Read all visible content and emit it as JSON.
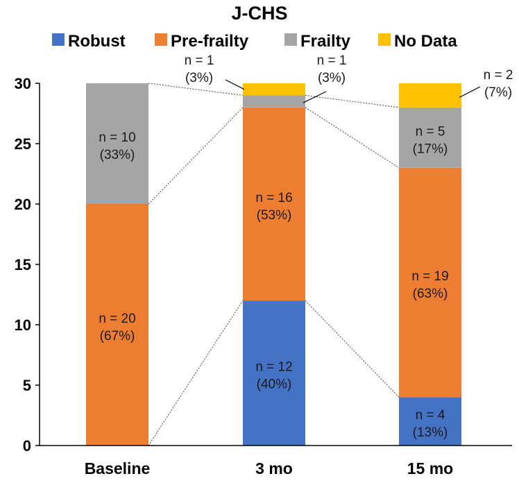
{
  "chart_data": {
    "type": "bar",
    "stacked": true,
    "title": "J-CHS",
    "categories": [
      "Baseline",
      "3 mo",
      "15 mo"
    ],
    "ylim": [
      0,
      30
    ],
    "yticks": [
      0,
      5,
      10,
      15,
      20,
      25,
      30
    ],
    "grid": false,
    "legend_position": "top",
    "series": [
      {
        "name": "Robust",
        "color": "#4472C4",
        "values": [
          0,
          12,
          4
        ],
        "labels": [
          [],
          [
            "n = 12",
            "(40%)"
          ],
          [
            "n = 4",
            "(13%)"
          ]
        ]
      },
      {
        "name": "Pre-frailty",
        "color": "#ED7D31",
        "values": [
          20,
          16,
          19
        ],
        "labels": [
          [
            "n = 20",
            "(67%)"
          ],
          [
            "n = 16",
            "(53%)"
          ],
          [
            "n = 19",
            "(63%)"
          ]
        ]
      },
      {
        "name": "Frailty",
        "color": "#A5A5A5",
        "values": [
          10,
          1,
          5
        ],
        "labels": [
          [
            "n = 10",
            "(33%)"
          ],
          [
            "n = 1",
            "(3%)"
          ],
          [
            "n = 5",
            "(17%)"
          ]
        ]
      },
      {
        "name": "No Data",
        "color": "#FFC000",
        "values": [
          0,
          1,
          2
        ],
        "labels": [
          [],
          [
            "n = 1",
            "(3%)"
          ],
          [
            "n = 2",
            "(7%)"
          ]
        ]
      }
    ]
  }
}
